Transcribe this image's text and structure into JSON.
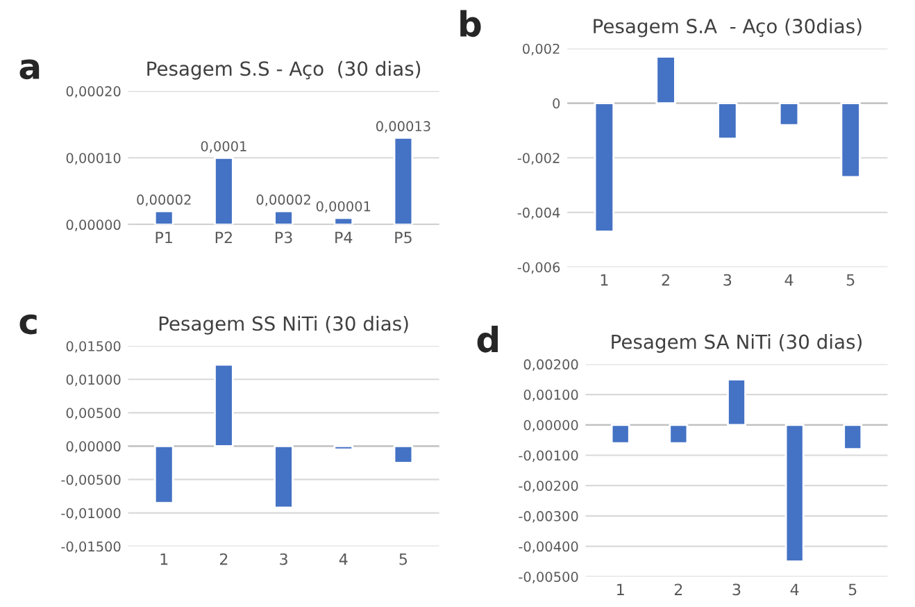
{
  "chart_data": [
    {
      "type": "bar",
      "title": "Pesagem S.S - Aço  (30 dias)",
      "annotations": [
        "a"
      ],
      "categories": [
        "P1",
        "P2",
        "P3",
        "P4",
        "P5"
      ],
      "values": [
        2e-05,
        0.0001,
        2e-05,
        1e-05,
        0.00013
      ],
      "value_labels": [
        "0,00002",
        "0,0001",
        "0,00002",
        "0,00001",
        "0,00013"
      ],
      "color": "#4472c4",
      "ylim": [
        0,
        0.0002
      ],
      "yticks": [
        {
          "value": 0,
          "label": "0,00000"
        },
        {
          "value": 0.0001,
          "label": "0,00010"
        },
        {
          "value": 0.0002,
          "label": "0,00020"
        }
      ],
      "grid": "y"
    },
    {
      "type": "bar",
      "title": "Pesagem S.A  - Aço (30dias)",
      "annotations": [
        "b"
      ],
      "categories": [
        "1",
        "2",
        "3",
        "4",
        "5"
      ],
      "values": [
        -0.0047,
        0.0017,
        -0.0013,
        -0.0008,
        -0.0027
      ],
      "color": "#4472c4",
      "ylim": [
        -0.006,
        0.002
      ],
      "yticks": [
        {
          "value": -0.006,
          "label": "-0,006"
        },
        {
          "value": -0.004,
          "label": "-0,004"
        },
        {
          "value": -0.002,
          "label": "-0,002"
        },
        0,
        {
          "value": 0.002,
          "label": "0,002"
        }
      ],
      "grid": "y"
    },
    {
      "type": "bar",
      "title": "Pesagem SS NiTi (30 dias)",
      "annotations": [
        "c"
      ],
      "categories": [
        "1",
        "2",
        "3",
        "4",
        "5"
      ],
      "values": [
        -0.0085,
        0.0122,
        -0.0092,
        -0.0005,
        -0.0025
      ],
      "color": "#4472c4",
      "ylim": [
        -0.015,
        0.015
      ],
      "yticks": [
        {
          "value": -0.015,
          "label": "-0,01500"
        },
        {
          "value": -0.01,
          "label": "-0,01000"
        },
        {
          "value": -0.005,
          "label": "-0,00500"
        },
        {
          "value": 0,
          "label": "0,00000"
        },
        {
          "value": 0.005,
          "label": "0,00500"
        },
        {
          "value": 0.01,
          "label": "0,01000"
        },
        {
          "value": 0.015,
          "label": "0,01500"
        }
      ],
      "grid": "y"
    },
    {
      "type": "bar",
      "title": "Pesagem SA NiTi (30 dias)",
      "annotations": [
        "d"
      ],
      "categories": [
        "1",
        "2",
        "3",
        "4",
        "5"
      ],
      "values": [
        -0.0006,
        -0.0006,
        0.0015,
        -0.0045,
        -0.0008
      ],
      "color": "#4472c4",
      "ylim": [
        -0.005,
        0.002
      ],
      "yticks": [
        {
          "value": -0.005,
          "label": "-0,00500"
        },
        {
          "value": -0.004,
          "label": "-0,00400"
        },
        {
          "value": -0.003,
          "label": "-0,00300"
        },
        {
          "value": -0.002,
          "label": "-0,00200"
        },
        {
          "value": -0.001,
          "label": "-0,00100"
        },
        {
          "value": 0,
          "label": "0,00000"
        },
        {
          "value": 0.001,
          "label": "0,00100"
        },
        {
          "value": 0.002,
          "label": "0,00200"
        }
      ],
      "grid": "y"
    }
  ]
}
